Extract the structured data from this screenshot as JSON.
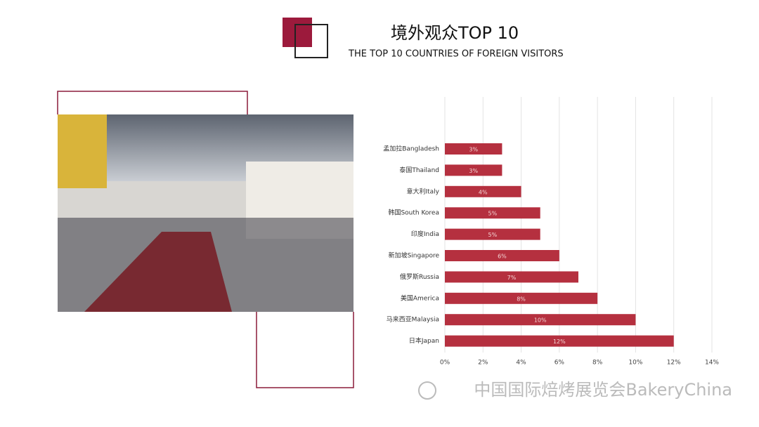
{
  "chart_data": {
    "type": "bar",
    "orientation": "horizontal",
    "title": "境外观众TOP 10",
    "subtitle": "THE TOP 10 COUNTRIES OF FOREIGN VISITORS",
    "categories": [
      "孟加拉Bangladesh",
      "泰国Thailand",
      "意大利Italy",
      "韩国South Korea",
      "印度India",
      "新加坡Singapore",
      "俄罗斯Russia",
      "美国America",
      "马来西亚Malaysia",
      "日本Japan"
    ],
    "values": [
      3,
      3,
      4,
      5,
      5,
      6,
      7,
      8,
      10,
      12
    ],
    "value_labels": [
      "3%",
      "3%",
      "4%",
      "5%",
      "5%",
      "6%",
      "7%",
      "8%",
      "10%",
      "12%"
    ],
    "color": "#b5303f",
    "xlim": [
      0,
      14
    ],
    "xticks": [
      {
        "value": 0,
        "label": "0%"
      },
      {
        "value": 2,
        "label": "2%"
      },
      {
        "value": 4,
        "label": "4%"
      },
      {
        "value": 6,
        "label": "6%"
      },
      {
        "value": 8,
        "label": "8%"
      },
      {
        "value": 10,
        "label": "10%"
      },
      {
        "value": 12,
        "label": "12%"
      },
      {
        "value": 14,
        "label": "14%"
      }
    ],
    "grid": true
  },
  "watermark": "中国国际焙烤展览会BakeryChina"
}
